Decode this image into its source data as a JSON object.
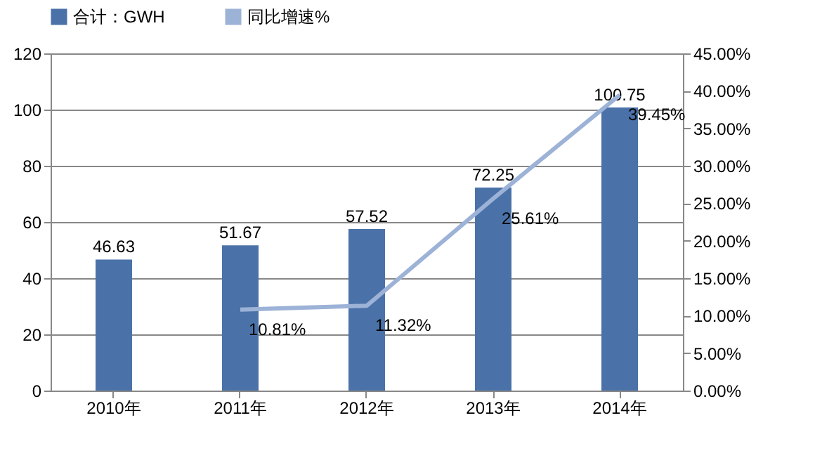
{
  "chart_data": {
    "type": "bar",
    "categories": [
      "2010年",
      "2011年",
      "2012年",
      "2013年",
      "2014年"
    ],
    "series": [
      {
        "name": "合计：GWH",
        "color": "#4a72a8",
        "values": [
          46.63,
          51.67,
          57.52,
          72.25,
          100.75
        ],
        "value_labels": [
          "46.63",
          "51.67",
          "57.52",
          "72.25",
          "100.75"
        ]
      },
      {
        "name": "同比增速%",
        "type": "line",
        "axis": "y2",
        "color": "#9db2d7",
        "values": [
          null,
          10.81,
          11.32,
          25.61,
          39.45
        ],
        "value_labels": [
          null,
          "10.81%",
          "11.32%",
          "25.61%",
          "39.45%"
        ]
      }
    ],
    "ylim": [
      0,
      120
    ],
    "yticks": [
      0,
      20,
      40,
      60,
      80,
      100,
      120
    ],
    "y2lim": [
      0,
      45
    ],
    "y2ticks": [
      {
        "value": 0,
        "label": "0.00%"
      },
      {
        "value": 5,
        "label": "5.00%"
      },
      {
        "value": 10,
        "label": "10.00%"
      },
      {
        "value": 15,
        "label": "15.00%"
      },
      {
        "value": 20,
        "label": "20.00%"
      },
      {
        "value": 25,
        "label": "25.00%"
      },
      {
        "value": 30,
        "label": "30.00%"
      },
      {
        "value": 35,
        "label": "35.00%"
      },
      {
        "value": 40,
        "label": "40.00%"
      },
      {
        "value": 45,
        "label": "45.00%"
      }
    ],
    "grid": "y",
    "legend": "top"
  }
}
